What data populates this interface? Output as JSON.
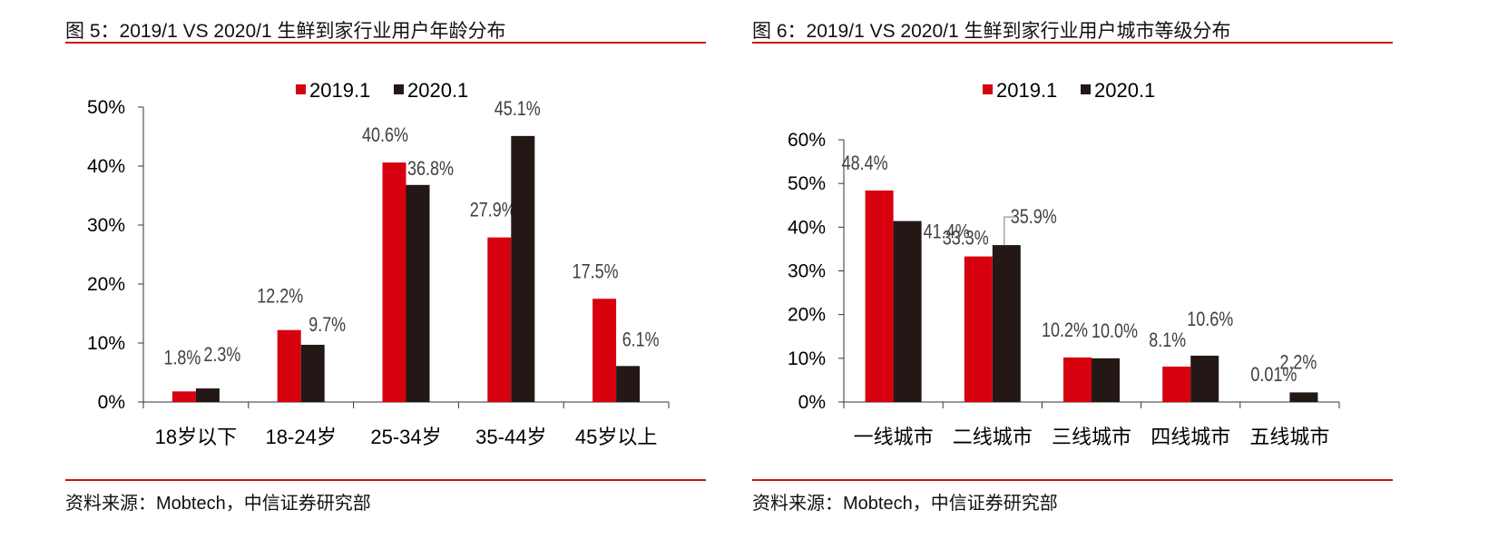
{
  "colors": {
    "series_2019": "#d7000f",
    "series_2020": "#231815",
    "rule": "#d0101a",
    "label": "#404040",
    "axis": "#333333"
  },
  "chart_data": [
    {
      "type": "bar",
      "title": "图 5：2019/1 VS 2020/1  生鲜到家行业用户年龄分布",
      "source": "资料来源：Mobtech，中信证券研究部",
      "categories": [
        "18岁以下",
        "18-24岁",
        "25-34岁",
        "35-44岁",
        "45岁以上"
      ],
      "series": [
        {
          "name": "2019.1",
          "values": [
            1.8,
            12.2,
            40.6,
            27.9,
            17.5
          ],
          "labels": [
            "1.8%",
            "12.2%",
            "40.6%",
            "27.9%",
            "17.5%"
          ]
        },
        {
          "name": "2020.1",
          "values": [
            2.3,
            9.7,
            36.8,
            45.1,
            6.1
          ],
          "labels": [
            "2.3%",
            "9.7%",
            "36.8%",
            "45.1%",
            "6.1%"
          ]
        }
      ],
      "ylim": [
        0,
        50
      ],
      "yticks": [
        "0%",
        "10%",
        "20%",
        "30%",
        "40%",
        "50%"
      ],
      "xlabel": "",
      "ylabel": "",
      "legend": "top-center",
      "grid": false
    },
    {
      "type": "bar",
      "title": "图 6：2019/1 VS 2020/1  生鲜到家行业用户城市等级分布",
      "source": "资料来源：Mobtech，中信证券研究部",
      "categories": [
        "一线城市",
        "二线城市",
        "三线城市",
        "四线城市",
        "五线城市"
      ],
      "series": [
        {
          "name": "2019.1",
          "values": [
            48.4,
            33.3,
            10.2,
            8.1,
            0.01
          ],
          "labels": [
            "48.4%",
            "33.3%",
            "10.2%",
            "8.1%",
            "0.01%"
          ]
        },
        {
          "name": "2020.1",
          "values": [
            41.4,
            35.9,
            10.0,
            10.6,
            2.2
          ],
          "labels": [
            "41.4%",
            "35.9%",
            "10.0%",
            "10.6%",
            "2.2%"
          ]
        }
      ],
      "ylim": [
        0,
        60
      ],
      "yticks": [
        "0%",
        "10%",
        "20%",
        "30%",
        "40%",
        "50%",
        "60%"
      ],
      "xlabel": "",
      "ylabel": "",
      "legend": "top-center",
      "grid": false
    }
  ]
}
